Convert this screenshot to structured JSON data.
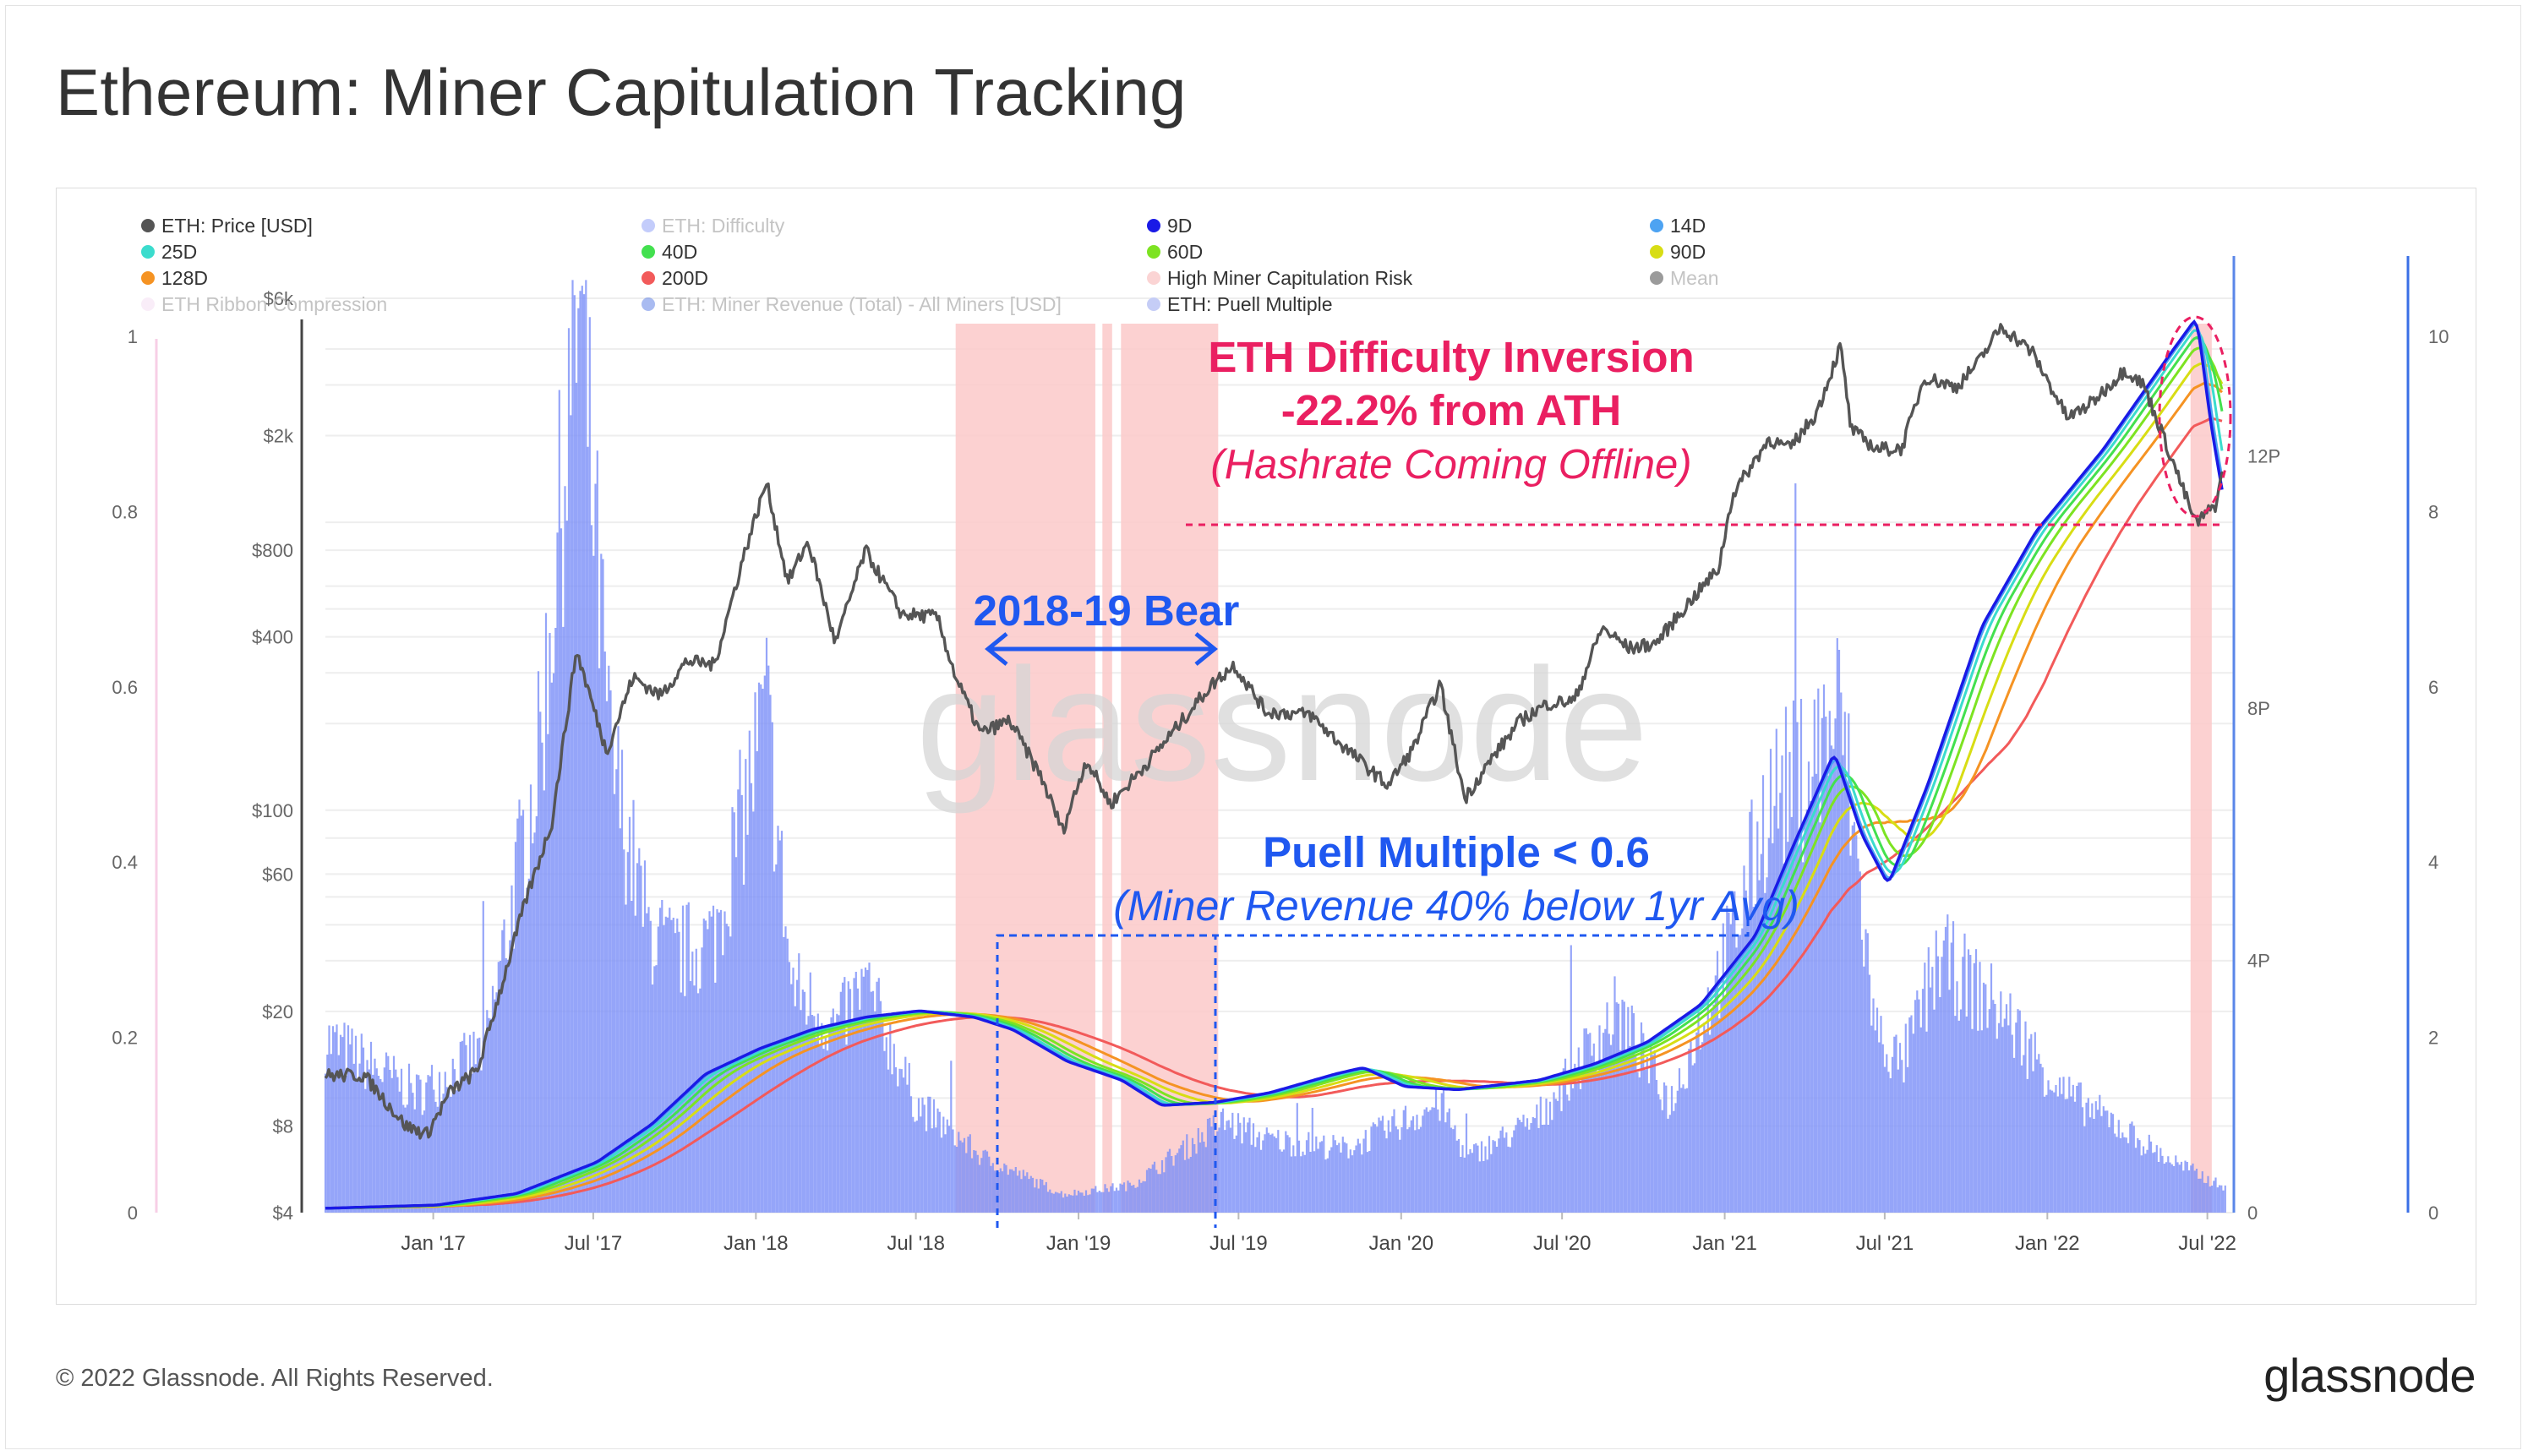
{
  "header": {
    "title": "Ethereum: Miner Capitulation Tracking"
  },
  "footer": {
    "copyright": "© 2022 Glassnode. All Rights Reserved.",
    "logo": "glassnode"
  },
  "watermark": "glassnode",
  "colors": {
    "price": "#555555",
    "difficulty": "#7b8ff7",
    "d9": "#1a1ae6",
    "d14": "#4da3f2",
    "d25": "#3bdccd",
    "d40": "#43e04f",
    "d60": "#7de322",
    "d90": "#d8dd14",
    "d128": "#f59323",
    "d200": "#f25a5a",
    "risk": "#fbc9c9",
    "mean": "#444444",
    "ribbon": "#f2d7ef",
    "revenue": "#4169e1",
    "puell": "#c5cdf6",
    "annotation_red": "#ea1f61",
    "annotation_blue": "#1f58f0"
  },
  "legend": [
    {
      "label": "ETH: Price [USD]",
      "color": "#555555",
      "faded": false
    },
    {
      "label": "ETH: Difficulty",
      "color": "#7b8ff7",
      "faded": true
    },
    {
      "label": "9D",
      "color": "#1a1ae6",
      "faded": false
    },
    {
      "label": "14D",
      "color": "#4da3f2",
      "faded": false
    },
    {
      "label": "25D",
      "color": "#3bdccd",
      "faded": false
    },
    {
      "label": "40D",
      "color": "#43e04f",
      "faded": false
    },
    {
      "label": "60D",
      "color": "#7de322",
      "faded": false
    },
    {
      "label": "90D",
      "color": "#d8dd14",
      "faded": false
    },
    {
      "label": "128D",
      "color": "#f59323",
      "faded": false
    },
    {
      "label": "200D",
      "color": "#f25a5a",
      "faded": false
    },
    {
      "label": "High Miner Capitulation Risk",
      "color": "#fbd4d4",
      "faded": false
    },
    {
      "label": "Mean",
      "color": "#222222",
      "faded": true
    },
    {
      "label": "ETH Ribbon Compression",
      "color": "#f2d7ef",
      "faded": true
    },
    {
      "label": "ETH: Miner Revenue (Total) - All Miners [USD]",
      "color": "#4169e1",
      "faded": true
    },
    {
      "label": "ETH: Puell Multiple",
      "color": "#c5cdf6",
      "faded": false
    }
  ],
  "annotations": {
    "inversion_title": "ETH Difficulty Inversion",
    "inversion_pct": "-22.2% from ATH",
    "inversion_note": "(Hashrate Coming Offline)",
    "bear_label": "2018-19 Bear",
    "puell_title": "Puell Multiple < 0.6",
    "puell_note": "(Miner Revenue 40% below 1yr Avg)"
  },
  "chart_data": {
    "type": "line",
    "x_ticks": [
      "Jan '17",
      "Jul '17",
      "Jan '18",
      "Jul '18",
      "Jan '19",
      "Jul '19",
      "Jan '20",
      "Jul '20",
      "Jan '21",
      "Jul '21",
      "Jan '22",
      "Jul '22"
    ],
    "x_range": [
      "2016-09-01",
      "2022-07-31"
    ],
    "axes": {
      "puell_left": {
        "ticks": [
          "0",
          "0.2",
          "0.4",
          "0.6",
          "0.8",
          "1"
        ],
        "range": [
          0,
          1
        ]
      },
      "price_left": {
        "ticks": [
          "$4",
          "$8",
          "$20",
          "$60",
          "$100",
          "$400",
          "$800",
          "$2k",
          "$6k"
        ],
        "scale": "log",
        "range": [
          4,
          6000
        ]
      },
      "difficulty_right": {
        "ticks": [
          "4P",
          "8P",
          "12P"
        ],
        "range": [
          0,
          14.5
        ]
      },
      "revenue_right": {
        "ticks": [
          "0",
          "2",
          "4",
          "6",
          "8",
          "10"
        ],
        "range": [
          0,
          10
        ]
      }
    },
    "capitulation_risk_periods": [
      [
        "2018-08-15",
        "2019-01-20"
      ],
      [
        "2019-01-28",
        "2019-02-08"
      ],
      [
        "2019-02-18",
        "2019-06-08"
      ],
      [
        "2022-06-12",
        "2022-07-06"
      ]
    ],
    "price_usd": [
      [
        "2016-09-01",
        12
      ],
      [
        "2016-10-15",
        12
      ],
      [
        "2016-12-01",
        8
      ],
      [
        "2016-12-25",
        7.5
      ],
      [
        "2017-01-20",
        10.5
      ],
      [
        "2017-02-20",
        12.5
      ],
      [
        "2017-03-15",
        22
      ],
      [
        "2017-04-15",
        48
      ],
      [
        "2017-05-15",
        90
      ],
      [
        "2017-06-12",
        360
      ],
      [
        "2017-07-16",
        160
      ],
      [
        "2017-08-15",
        290
      ],
      [
        "2017-09-15",
        250
      ],
      [
        "2017-10-15",
        330
      ],
      [
        "2017-11-15",
        320
      ],
      [
        "2017-12-20",
        800
      ],
      [
        "2018-01-13",
        1380
      ],
      [
        "2018-02-06",
        620
      ],
      [
        "2018-03-01",
        860
      ],
      [
        "2018-04-01",
        380
      ],
      [
        "2018-05-05",
        800
      ],
      [
        "2018-06-15",
        480
      ],
      [
        "2018-07-25",
        470
      ],
      [
        "2018-08-15",
        290
      ],
      [
        "2018-09-12",
        185
      ],
      [
        "2018-10-15",
        205
      ],
      [
        "2018-11-20",
        130
      ],
      [
        "2018-12-14",
        85
      ],
      [
        "2019-01-10",
        150
      ],
      [
        "2019-02-06",
        105
      ],
      [
        "2019-03-10",
        135
      ],
      [
        "2019-04-10",
        175
      ],
      [
        "2019-05-30",
        270
      ],
      [
        "2019-06-26",
        320
      ],
      [
        "2019-08-01",
        220
      ],
      [
        "2019-09-20",
        215
      ],
      [
        "2019-10-20",
        175
      ],
      [
        "2019-12-17",
        122
      ],
      [
        "2020-01-15",
        165
      ],
      [
        "2020-02-14",
        275
      ],
      [
        "2020-03-13",
        110
      ],
      [
        "2020-04-15",
        155
      ],
      [
        "2020-05-15",
        205
      ],
      [
        "2020-06-15",
        235
      ],
      [
        "2020-07-15",
        240
      ],
      [
        "2020-08-15",
        430
      ],
      [
        "2020-09-15",
        365
      ],
      [
        "2020-10-15",
        380
      ],
      [
        "2020-11-20",
        520
      ],
      [
        "2020-12-25",
        690
      ],
      [
        "2021-01-10",
        1250
      ],
      [
        "2021-02-20",
        1950
      ],
      [
        "2021-03-15",
        1800
      ],
      [
        "2021-04-15",
        2400
      ],
      [
        "2021-05-12",
        4100
      ],
      [
        "2021-05-24",
        2100
      ],
      [
        "2021-06-22",
        1800
      ],
      [
        "2021-07-20",
        1800
      ],
      [
        "2021-08-15",
        3200
      ],
      [
        "2021-09-20",
        2950
      ],
      [
        "2021-10-15",
        3600
      ],
      [
        "2021-11-10",
        4800
      ],
      [
        "2021-12-15",
        3900
      ],
      [
        "2022-01-24",
        2300
      ],
      [
        "2022-02-20",
        2600
      ],
      [
        "2022-03-30",
        3400
      ],
      [
        "2022-04-20",
        3000
      ],
      [
        "2022-05-12",
        2000
      ],
      [
        "2022-06-18",
        990
      ],
      [
        "2022-07-10",
        1150
      ],
      [
        "2022-07-20",
        1550
      ]
    ],
    "difficulty_peta": [
      [
        "2016-09-01",
        0.07
      ],
      [
        "2017-01-01",
        0.12
      ],
      [
        "2017-04-01",
        0.3
      ],
      [
        "2017-07-01",
        0.8
      ],
      [
        "2017-09-01",
        1.4
      ],
      [
        "2017-11-01",
        2.2
      ],
      [
        "2018-01-01",
        2.6
      ],
      [
        "2018-03-01",
        2.9
      ],
      [
        "2018-05-01",
        3.1
      ],
      [
        "2018-07-01",
        3.2
      ],
      [
        "2018-09-01",
        3.1
      ],
      [
        "2018-10-15",
        2.9
      ],
      [
        "2018-12-15",
        2.4
      ],
      [
        "2019-02-15",
        2.1
      ],
      [
        "2019-04-01",
        1.7
      ],
      [
        "2019-06-01",
        1.75
      ],
      [
        "2019-08-01",
        1.9
      ],
      [
        "2019-10-15",
        2.2
      ],
      [
        "2019-11-15",
        2.3
      ],
      [
        "2020-01-01",
        2.0
      ],
      [
        "2020-03-01",
        1.95
      ],
      [
        "2020-06-01",
        2.1
      ],
      [
        "2020-08-01",
        2.35
      ],
      [
        "2020-10-01",
        2.7
      ],
      [
        "2020-12-01",
        3.3
      ],
      [
        "2021-02-01",
        4.4
      ],
      [
        "2021-03-15",
        5.8
      ],
      [
        "2021-05-01",
        7.3
      ],
      [
        "2021-06-01",
        6.0
      ],
      [
        "2021-07-01",
        5.2
      ],
      [
        "2021-08-15",
        6.8
      ],
      [
        "2021-10-15",
        9.3
      ],
      [
        "2021-12-15",
        10.8
      ],
      [
        "2022-03-01",
        12.1
      ],
      [
        "2022-05-15",
        13.6
      ],
      [
        "2022-06-15",
        14.2
      ],
      [
        "2022-07-01",
        12.5
      ],
      [
        "2022-07-18",
        11.1
      ]
    ],
    "puell_multiple": [
      [
        "2016-09-01",
        0.19
      ],
      [
        "2016-12-15",
        0.13
      ],
      [
        "2017-03-01",
        0.18
      ],
      [
        "2017-05-01",
        0.5
      ],
      [
        "2017-06-15",
        1.0
      ],
      [
        "2017-07-20",
        0.5
      ],
      [
        "2017-09-01",
        0.31
      ],
      [
        "2017-10-01",
        0.28
      ],
      [
        "2017-11-15",
        0.3
      ],
      [
        "2018-01-13",
        0.55
      ],
      [
        "2018-02-10",
        0.25
      ],
      [
        "2018-04-01",
        0.2
      ],
      [
        "2018-05-05",
        0.25
      ],
      [
        "2018-07-01",
        0.12
      ],
      [
        "2018-09-15",
        0.06
      ],
      [
        "2018-12-15",
        0.02
      ],
      [
        "2019-03-01",
        0.03
      ],
      [
        "2019-06-15",
        0.1
      ],
      [
        "2019-08-01",
        0.08
      ],
      [
        "2019-11-01",
        0.07
      ],
      [
        "2020-02-15",
        0.12
      ],
      [
        "2020-03-15",
        0.06
      ],
      [
        "2020-06-01",
        0.1
      ],
      [
        "2020-09-01",
        0.22
      ],
      [
        "2020-11-01",
        0.12
      ],
      [
        "2021-01-10",
        0.3
      ],
      [
        "2021-02-20",
        0.45
      ],
      [
        "2021-04-01",
        0.48
      ],
      [
        "2021-05-12",
        0.55
      ],
      [
        "2021-06-20",
        0.2
      ],
      [
        "2021-07-20",
        0.16
      ],
      [
        "2021-09-01",
        0.28
      ],
      [
        "2021-11-10",
        0.22
      ],
      [
        "2022-01-20",
        0.13
      ],
      [
        "2022-03-15",
        0.1
      ],
      [
        "2022-05-15",
        0.06
      ],
      [
        "2022-07-15",
        0.03
      ]
    ]
  }
}
